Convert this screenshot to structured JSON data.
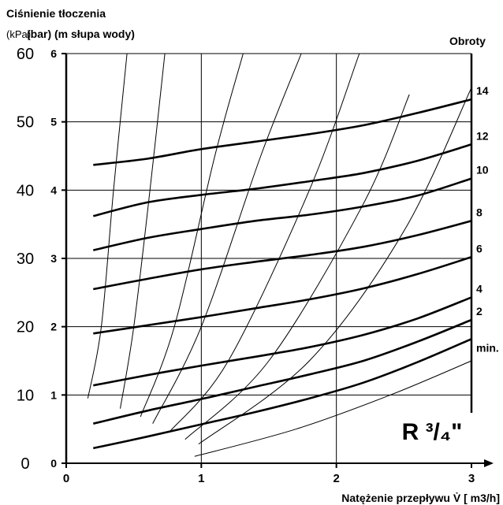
{
  "chart_data": {
    "type": "line",
    "title_line1": "Ciśnienie tłoczenia",
    "title_line2": "(bar) (m słupa wody)",
    "left_unit": "(kPa)",
    "xlabel": "Natężenie przepływu V̇ [ m3/h]",
    "right_axis_title": "Obroty",
    "badge": "R ³/₄\"",
    "xlim": [
      0,
      3
    ],
    "ylim_bar": [
      0,
      6
    ],
    "x_ticks": [
      "0",
      "1",
      "2",
      "3"
    ],
    "y_ticks_bar": [
      "0",
      "1",
      "2",
      "3",
      "4",
      "5",
      "6"
    ],
    "y_ticks_kpa": [
      "0",
      "10",
      "20",
      "30",
      "40",
      "50",
      "60"
    ],
    "grid": true,
    "series": [
      {
        "name": "14",
        "x": [
          0.2,
          0.6,
          1.0,
          1.4,
          1.8,
          2.2,
          2.6,
          3.0
        ],
        "y": [
          4.37,
          4.46,
          4.6,
          4.71,
          4.82,
          4.95,
          5.13,
          5.33
        ]
      },
      {
        "name": "12",
        "x": [
          0.2,
          0.6,
          1.0,
          1.4,
          1.8,
          2.2,
          2.6,
          3.0
        ],
        "y": [
          3.62,
          3.82,
          3.93,
          4.02,
          4.13,
          4.25,
          4.43,
          4.67
        ]
      },
      {
        "name": "10",
        "x": [
          0.2,
          0.6,
          1.0,
          1.4,
          1.8,
          2.2,
          2.6,
          3.0
        ],
        "y": [
          3.12,
          3.3,
          3.43,
          3.55,
          3.64,
          3.76,
          3.92,
          4.17
        ]
      },
      {
        "name": "8",
        "x": [
          0.2,
          0.6,
          1.0,
          1.4,
          1.8,
          2.2,
          2.6,
          3.0
        ],
        "y": [
          2.55,
          2.7,
          2.84,
          2.95,
          3.05,
          3.17,
          3.34,
          3.55
        ]
      },
      {
        "name": "6",
        "x": [
          0.2,
          0.6,
          1.0,
          1.4,
          1.8,
          2.2,
          2.6,
          3.0
        ],
        "y": [
          1.9,
          2.02,
          2.14,
          2.27,
          2.4,
          2.56,
          2.77,
          3.02
        ]
      },
      {
        "name": "4",
        "x": [
          0.2,
          0.6,
          1.0,
          1.4,
          1.8,
          2.2,
          2.6,
          3.0
        ],
        "y": [
          1.14,
          1.29,
          1.43,
          1.56,
          1.7,
          1.88,
          2.12,
          2.43
        ]
      },
      {
        "name": "2",
        "x": [
          0.2,
          0.6,
          1.0,
          1.4,
          1.8,
          2.2,
          2.6,
          3.0
        ],
        "y": [
          0.58,
          0.77,
          0.94,
          1.12,
          1.3,
          1.5,
          1.78,
          2.1
        ]
      },
      {
        "name": "min.",
        "x": [
          0.2,
          0.6,
          1.0,
          1.4,
          1.8,
          2.2,
          2.6,
          3.0
        ],
        "y": [
          0.22,
          0.39,
          0.57,
          0.75,
          0.95,
          1.18,
          1.48,
          1.82
        ]
      }
    ],
    "system_curves": [
      {
        "x": [
          0.16,
          0.26,
          0.35,
          0.45
        ],
        "y": [
          0.95,
          2.0,
          4.0,
          6.0
        ]
      },
      {
        "x": [
          0.4,
          0.5,
          0.62,
          0.73
        ],
        "y": [
          0.8,
          2.0,
          4.0,
          6.0
        ]
      },
      {
        "x": [
          0.55,
          0.8,
          1.1,
          1.31
        ],
        "y": [
          0.68,
          2.0,
          4.5,
          6.0
        ]
      },
      {
        "x": [
          0.64,
          1.0,
          1.44,
          1.74
        ],
        "y": [
          0.58,
          2.0,
          4.5,
          6.0
        ]
      },
      {
        "x": [
          0.76,
          1.2,
          1.8,
          2.17
        ],
        "y": [
          0.45,
          1.5,
          4.0,
          6.0
        ]
      },
      {
        "x": [
          0.88,
          1.5,
          2.2,
          2.54
        ],
        "y": [
          0.35,
          1.5,
          3.8,
          5.4
        ]
      },
      {
        "x": [
          0.98,
          1.8,
          2.5,
          3.0
        ],
        "y": [
          0.28,
          1.5,
          3.4,
          5.5
        ]
      },
      {
        "x": [
          0.95,
          1.7,
          2.4,
          3.0
        ],
        "y": [
          0.1,
          0.5,
          1.0,
          1.5
        ]
      }
    ]
  }
}
